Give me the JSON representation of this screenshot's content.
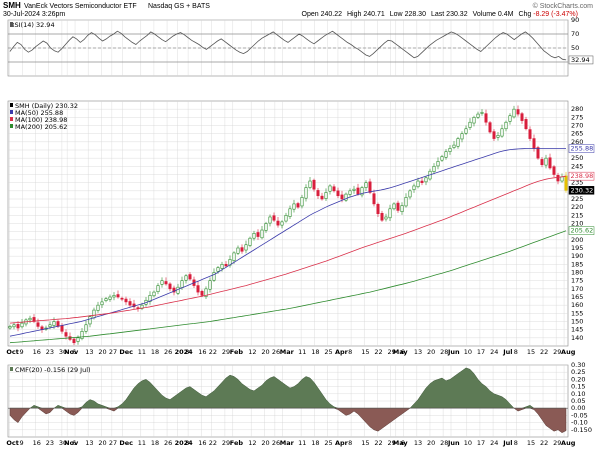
{
  "header": {
    "symbol": "SMH",
    "name": "VanEck Vectors Semiconductor ETF",
    "exchange": "Nasdaq GS + BATS",
    "date": "30-Jul-2024 3:26pm",
    "brand": "© StockCharts.com",
    "quote": [
      {
        "label": "Open",
        "value": "240.22"
      },
      {
        "label": "High",
        "value": "240.71"
      },
      {
        "label": "Low",
        "value": "228.30"
      },
      {
        "label": "Last",
        "value": "230.32"
      },
      {
        "label": "Volume",
        "value": "0.4M"
      },
      {
        "label": "Chg",
        "value": "-8.29 (-3.47%)"
      }
    ],
    "chg_color": "#cc0000"
  },
  "colors": {
    "up": "#2a8a2a",
    "down": "#d81e3c",
    "last": "#e5c100",
    "ma50": "#3a3aaa",
    "ma100": "#d9304a",
    "ma200": "#2e8b2e",
    "cmf_pos": "#5d7a55",
    "cmf_neg": "#8a5a55",
    "rsi_line": "#555555",
    "grid": "#d4d4d4"
  },
  "chart_data": [
    {
      "type": "line",
      "panel": "rsi",
      "legend": "RSI(14) 32.94",
      "ylim": [
        10,
        90
      ],
      "yticks": [
        30,
        50,
        70,
        90
      ],
      "reference_lines": [
        30,
        50,
        70
      ],
      "values": [
        45,
        52,
        58,
        55,
        48,
        44,
        47,
        52,
        56,
        60,
        57,
        50,
        46,
        44,
        49,
        55,
        61,
        66,
        63,
        58,
        62,
        68,
        72,
        69,
        64,
        60,
        63,
        67,
        70,
        74,
        71,
        66,
        62,
        58,
        55,
        60,
        64,
        68,
        73,
        70,
        66,
        62,
        59,
        63,
        67,
        70,
        72,
        69,
        65,
        61,
        58,
        55,
        51,
        48,
        52,
        56,
        60,
        63,
        59,
        55,
        51,
        47,
        44,
        42,
        45,
        50,
        55,
        60,
        64,
        67,
        70,
        73,
        69,
        65,
        61,
        58,
        62,
        66,
        70,
        67,
        63,
        59,
        56,
        60,
        64,
        68,
        71,
        74,
        70,
        66,
        62,
        58,
        55,
        51,
        48,
        44,
        40,
        38,
        42,
        47,
        52,
        57,
        61,
        60,
        56,
        52,
        48,
        44,
        40,
        36,
        38,
        43,
        48,
        53,
        57,
        61,
        64,
        67,
        70,
        73,
        71,
        68,
        64,
        60,
        56,
        52,
        48,
        45,
        50,
        55,
        60,
        65,
        69,
        72,
        70,
        66,
        62,
        66,
        70,
        73,
        69,
        64,
        58,
        52,
        46,
        42,
        38,
        36,
        38,
        34,
        32.94
      ]
    },
    {
      "type": "candlestick",
      "panel": "price",
      "legend": [
        {
          "label": "SMH (Daily) 230.32",
          "color": "#000000"
        },
        {
          "label": "MA(50) 255.88",
          "color": "#3a3aaa"
        },
        {
          "label": "MA(100) 238.98",
          "color": "#d9304a"
        },
        {
          "label": "MA(200) 205.62",
          "color": "#2e8b2e"
        }
      ],
      "ylim": [
        135,
        285
      ],
      "yticks": [
        140,
        145,
        150,
        155,
        160,
        165,
        170,
        175,
        180,
        185,
        190,
        195,
        200,
        205,
        210,
        215,
        220,
        225,
        230,
        235,
        240,
        245,
        250,
        255,
        260,
        265,
        270,
        275,
        280
      ],
      "badges": [
        {
          "value": "255.88",
          "fill": "#ffffff",
          "stroke": "#3a3aaa",
          "text": "#3a3aaa"
        },
        {
          "value": "238.98",
          "fill": "#ffffff",
          "stroke": "#d9304a",
          "text": "#d9304a"
        },
        {
          "value": "230.32",
          "fill": "#000000",
          "stroke": "#000000",
          "text": "#ffffff"
        },
        {
          "value": "205.62",
          "fill": "#ffffff",
          "stroke": "#2e8b2e",
          "text": "#2e8b2e"
        }
      ],
      "close": [
        147,
        148,
        146,
        149,
        151,
        152,
        150,
        147,
        145,
        146,
        148,
        150,
        147,
        144,
        141,
        139,
        137,
        140,
        144,
        148,
        153,
        157,
        160,
        162,
        164,
        165,
        166,
        165,
        164,
        162,
        160,
        159,
        158,
        160,
        163,
        166,
        168,
        172,
        175,
        173,
        170,
        168,
        171,
        175,
        178,
        176,
        172,
        168,
        166,
        170,
        175,
        180,
        183,
        185,
        184,
        188,
        192,
        195,
        193,
        197,
        201,
        204,
        202,
        206,
        210,
        214,
        212,
        209,
        211,
        215,
        219,
        222,
        220,
        226,
        232,
        236,
        231,
        227,
        225,
        229,
        233,
        230,
        227,
        225,
        228,
        230,
        231,
        228,
        232,
        235,
        229,
        222,
        216,
        212,
        214,
        219,
        222,
        218,
        221,
        226,
        230,
        233,
        236,
        235,
        238,
        242,
        245,
        248,
        251,
        254,
        256,
        258,
        262,
        265,
        268,
        272,
        275,
        277,
        278,
        272,
        266,
        262,
        264,
        268,
        272,
        276,
        280,
        277,
        273,
        268,
        262,
        256,
        250,
        246,
        250,
        244,
        240,
        236,
        238.61,
        230.32
      ],
      "ma50": [
        141,
        141.5,
        142,
        142.5,
        143,
        143.5,
        144,
        144.5,
        145,
        145.5,
        146,
        146.5,
        147,
        147.5,
        148,
        148.5,
        149,
        149.5,
        150,
        150.7,
        151.4,
        152.1,
        152.8,
        153.5,
        154.2,
        154.9,
        155.6,
        156.3,
        157,
        157.7,
        158.4,
        159.1,
        159.8,
        160.5,
        161.2,
        162,
        163,
        164,
        165,
        166,
        167,
        168,
        169,
        170,
        171,
        172,
        173,
        174,
        175,
        176,
        177,
        178,
        179,
        180.5,
        182,
        183.5,
        185,
        186.5,
        188,
        189.5,
        191,
        192.5,
        194,
        195.5,
        197,
        198.5,
        200,
        201.5,
        203,
        204.5,
        206,
        207.5,
        209,
        210.5,
        212,
        213.5,
        215,
        216.3,
        217.5,
        218.7,
        219.9,
        221,
        222,
        223,
        224,
        225,
        226,
        226.8,
        227.5,
        228.2,
        228.8,
        229.3,
        229.7,
        230.1,
        230.5,
        231,
        231.6,
        232.3,
        233,
        233.8,
        234.6,
        235.4,
        236.2,
        237,
        237.8,
        238.6,
        239.4,
        240.2,
        241,
        241.8,
        242.6,
        243.4,
        244.2,
        245,
        245.8,
        246.6,
        247.4,
        248.2,
        249,
        249.8,
        250.6,
        251.4,
        252.2,
        253,
        253.8,
        254.4,
        254.9,
        255.3,
        255.5,
        255.7,
        255.8,
        255.9,
        255.9,
        255.9,
        255.88,
        255.88,
        255.88,
        255.88,
        255.88,
        255.88,
        255.88,
        255.88
      ],
      "ma100": [
        149,
        149.2,
        149.4,
        149.6,
        149.8,
        150,
        150.2,
        150.4,
        150.6,
        150.8,
        151,
        151.2,
        151.4,
        151.6,
        151.8,
        152,
        152.3,
        152.6,
        152.9,
        153.2,
        153.5,
        153.8,
        154.1,
        154.4,
        154.7,
        155,
        155.4,
        155.8,
        156.2,
        156.6,
        157,
        157.4,
        157.8,
        158.2,
        158.6,
        159,
        159.5,
        160,
        160.5,
        161,
        161.5,
        162,
        162.5,
        163,
        163.5,
        164,
        164.5,
        165,
        165.5,
        166,
        166.6,
        167.2,
        167.8,
        168.4,
        169,
        169.6,
        170.2,
        170.8,
        171.4,
        172,
        172.7,
        173.4,
        174.1,
        174.8,
        175.5,
        176.2,
        176.9,
        177.6,
        178.3,
        179,
        179.8,
        180.6,
        181.4,
        182.2,
        183,
        183.8,
        184.6,
        185.4,
        186.2,
        187,
        187.9,
        188.8,
        189.7,
        190.6,
        191.5,
        192.4,
        193.3,
        194.2,
        195.1,
        196,
        196.8,
        197.6,
        198.4,
        199.2,
        200,
        200.8,
        201.6,
        202.4,
        203.2,
        204,
        204.9,
        205.8,
        206.7,
        207.6,
        208.5,
        209.4,
        210.3,
        211.2,
        212.1,
        213,
        214,
        215,
        216,
        217,
        218,
        219,
        220,
        221,
        222,
        223,
        224,
        225,
        226,
        227,
        228,
        229,
        230,
        231,
        232,
        233,
        234,
        235,
        235.8,
        236.5,
        237.1,
        237.6,
        238,
        238.3,
        238.6,
        238.98
      ],
      "ma200": [
        137,
        137.2,
        137.4,
        137.6,
        137.8,
        138,
        138.2,
        138.4,
        138.6,
        138.8,
        139,
        139.2,
        139.4,
        139.6,
        139.8,
        140,
        140.2,
        140.4,
        140.6,
        140.8,
        141,
        141.3,
        141.6,
        141.9,
        142.2,
        142.5,
        142.8,
        143.1,
        143.4,
        143.7,
        144,
        144.3,
        144.6,
        144.9,
        145.2,
        145.5,
        145.8,
        146.1,
        146.4,
        146.7,
        147,
        147.3,
        147.6,
        147.9,
        148.2,
        148.5,
        148.8,
        149.1,
        149.4,
        149.7,
        150,
        150.4,
        150.8,
        151.2,
        151.6,
        152,
        152.4,
        152.8,
        153.2,
        153.6,
        154,
        154.4,
        154.8,
        155.2,
        155.6,
        156,
        156.4,
        156.8,
        157.2,
        157.6,
        158,
        158.5,
        159,
        159.5,
        160,
        160.5,
        161,
        161.5,
        162,
        162.5,
        163,
        163.5,
        164,
        164.5,
        165,
        165.5,
        166,
        166.5,
        167,
        167.5,
        168,
        168.6,
        169.2,
        169.8,
        170.4,
        171,
        171.6,
        172.2,
        172.8,
        173.4,
        174,
        174.7,
        175.4,
        176.1,
        176.8,
        177.5,
        178.2,
        178.9,
        179.6,
        180.3,
        181,
        181.8,
        182.6,
        183.4,
        184.2,
        185,
        185.8,
        186.6,
        187.4,
        188.2,
        189,
        189.8,
        190.6,
        191.4,
        192.2,
        193,
        193.9,
        194.8,
        195.7,
        196.6,
        197.5,
        198.4,
        199.3,
        200.2,
        201.1,
        202,
        202.9,
        203.8,
        204.7,
        205.62
      ]
    },
    {
      "type": "area",
      "panel": "cmf",
      "legend": "CMF(20) -0.156 (29 Jul)",
      "ylim": [
        -0.2,
        0.3
      ],
      "yticks": [
        -0.15,
        -0.1,
        -0.05,
        0.0,
        0.05,
        0.1,
        0.15,
        0.2,
        0.25,
        0.3
      ],
      "ytick_labels": [
        "-0.150",
        "-0.10",
        "-0.05",
        "0.00",
        "0.05",
        "0.10",
        "0.15",
        "0.20",
        "0.25",
        "0.30"
      ],
      "values": [
        -0.05,
        -0.08,
        -0.1,
        -0.06,
        -0.03,
        0,
        0.02,
        0.01,
        -0.02,
        -0.04,
        -0.03,
        0,
        0.02,
        0.01,
        -0.02,
        -0.04,
        -0.05,
        -0.03,
        0.01,
        0.04,
        0.06,
        0.05,
        0.03,
        0.02,
        0.01,
        -0.01,
        -0.02,
        0.01,
        0.03,
        0.06,
        0.1,
        0.14,
        0.17,
        0.19,
        0.2,
        0.18,
        0.15,
        0.12,
        0.09,
        0.07,
        0.06,
        0.08,
        0.1,
        0.12,
        0.14,
        0.15,
        0.13,
        0.11,
        0.09,
        0.08,
        0.1,
        0.12,
        0.15,
        0.18,
        0.21,
        0.23,
        0.22,
        0.2,
        0.17,
        0.15,
        0.13,
        0.12,
        0.14,
        0.16,
        0.19,
        0.21,
        0.22,
        0.2,
        0.18,
        0.16,
        0.14,
        0.15,
        0.17,
        0.2,
        0.22,
        0.21,
        0.18,
        0.14,
        0.1,
        0.06,
        0.03,
        0.01,
        -0.01,
        -0.03,
        -0.05,
        -0.04,
        -0.02,
        -0.04,
        -0.07,
        -0.1,
        -0.13,
        -0.15,
        -0.16,
        -0.14,
        -0.12,
        -0.1,
        -0.08,
        -0.06,
        -0.04,
        -0.02,
        0,
        0.03,
        0.06,
        0.1,
        0.14,
        0.17,
        0.19,
        0.2,
        0.21,
        0.19,
        0.2,
        0.22,
        0.24,
        0.26,
        0.28,
        0.27,
        0.24,
        0.2,
        0.17,
        0.15,
        0.12,
        0.1,
        0.09,
        0.08,
        0.06,
        0.03,
        0,
        -0.02,
        -0.01,
        0.01,
        0.02,
        -0.01,
        -0.04,
        -0.08,
        -0.12,
        -0.14,
        -0.16,
        -0.15,
        -0.17,
        -0.156
      ]
    }
  ],
  "x_axis": {
    "labels": [
      {
        "text": "Oct",
        "bold": true,
        "i": 0
      },
      {
        "text": "9",
        "i": 5
      },
      {
        "text": "16",
        "i": 10
      },
      {
        "text": "23",
        "i": 15
      },
      {
        "text": "30",
        "i": 20
      },
      {
        "text": "Nov",
        "bold": true,
        "i": 22
      },
      {
        "text": "6",
        "i": 25
      },
      {
        "text": "13",
        "i": 30
      },
      {
        "text": "20",
        "i": 35
      },
      {
        "text": "27",
        "i": 39
      },
      {
        "text": "Dec",
        "bold": true,
        "i": 43
      },
      {
        "text": "11",
        "i": 50
      },
      {
        "text": "18",
        "i": 55
      },
      {
        "text": "26",
        "i": 60
      },
      {
        "text": "2024",
        "bold": true,
        "i": 64
      },
      {
        "text": "8",
        "i": 68
      },
      {
        "text": "16",
        "i": 73
      },
      {
        "text": "22",
        "i": 77
      },
      {
        "text": "29",
        "i": 82
      },
      {
        "text": "Feb",
        "bold": true,
        "i": 85
      },
      {
        "text": "12",
        "i": 92
      },
      {
        "text": "20",
        "i": 97
      },
      {
        "text": "26",
        "i": 101
      },
      {
        "text": "Mar",
        "bold": true,
        "i": 104
      },
      {
        "text": "11",
        "i": 111
      },
      {
        "text": "18",
        "i": 116
      },
      {
        "text": "25",
        "i": 121
      },
      {
        "text": "Apr",
        "bold": true,
        "i": 125
      },
      {
        "text": "8",
        "i": 130
      },
      {
        "text": "15",
        "i": 135
      },
      {
        "text": "22",
        "i": 140
      },
      {
        "text": "29",
        "i": 145
      },
      {
        "text": "May",
        "bold": true,
        "i": 147
      },
      {
        "text": "6",
        "i": 150
      },
      {
        "text": "13",
        "i": 155
      },
      {
        "text": "20",
        "i": 160
      },
      {
        "text": "28",
        "i": 165
      },
      {
        "text": "Jun",
        "bold": true,
        "i": 168
      },
      {
        "text": "10",
        "i": 174
      },
      {
        "text": "17",
        "i": 179
      },
      {
        "text": "24",
        "i": 184
      },
      {
        "text": "Jul",
        "bold": true,
        "i": 189
      },
      {
        "text": "8",
        "i": 193
      },
      {
        "text": "15",
        "i": 198
      },
      {
        "text": "22",
        "i": 203
      },
      {
        "text": "29",
        "i": 208
      },
      {
        "text": "Aug",
        "bold": true,
        "i": 211
      }
    ],
    "count": 213
  }
}
